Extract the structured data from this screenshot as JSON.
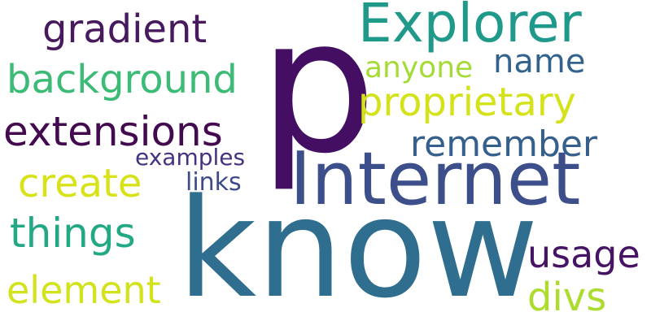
{
  "words": [
    {
      "key": "p",
      "text": "p",
      "color": "#440f62"
    },
    {
      "key": "know",
      "text": "know",
      "color": "#2f6e8e"
    },
    {
      "key": "internet",
      "text": "Internet",
      "color": "#3c4f8a"
    },
    {
      "key": "explorer",
      "text": "Explorer",
      "color": "#1f9a8a"
    },
    {
      "key": "gradient",
      "text": "gradient",
      "color": "#471a5e"
    },
    {
      "key": "background",
      "text": "background",
      "color": "#3bbb75"
    },
    {
      "key": "extensions",
      "text": "extensions",
      "color": "#440a4f"
    },
    {
      "key": "proprietary",
      "text": "proprietary",
      "color": "#d4e21a"
    },
    {
      "key": "name",
      "text": "name",
      "color": "#33638d"
    },
    {
      "key": "anyone",
      "text": "anyone",
      "color": "#a5db36"
    },
    {
      "key": "remember",
      "text": "remember",
      "color": "#355f8d"
    },
    {
      "key": "create",
      "text": "create",
      "color": "#d8e219"
    },
    {
      "key": "examples",
      "text": "examples",
      "color": "#46327e"
    },
    {
      "key": "links",
      "text": "links",
      "color": "#3e4a89"
    },
    {
      "key": "things",
      "text": "things",
      "color": "#22a884"
    },
    {
      "key": "element",
      "text": "element",
      "color": "#d2e21b"
    },
    {
      "key": "usage",
      "text": "usage",
      "color": "#471365"
    },
    {
      "key": "divs",
      "text": "divs",
      "color": "#addc30"
    }
  ]
}
